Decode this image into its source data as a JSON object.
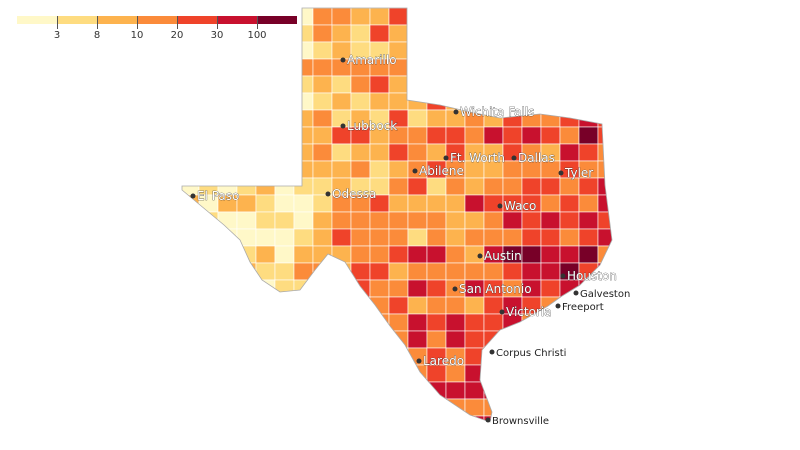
{
  "legend": {
    "colors": [
      "#fff8c8",
      "#fedc80",
      "#fdb34e",
      "#fb8b3a",
      "#ef432a",
      "#c8112e",
      "#780028"
    ],
    "ticks": [
      "3",
      "8",
      "10",
      "20",
      "30",
      "100"
    ]
  },
  "cities": [
    {
      "name": "Amarillo",
      "big": true
    },
    {
      "name": "Lubbock",
      "big": true
    },
    {
      "name": "Wichita Falls",
      "big": true
    },
    {
      "name": "Ft. Worth",
      "big": true
    },
    {
      "name": "Dallas",
      "big": true
    },
    {
      "name": "Abilene",
      "big": true
    },
    {
      "name": "Tyler",
      "big": true
    },
    {
      "name": "El Paso",
      "big": true
    },
    {
      "name": "Odessa",
      "big": true
    },
    {
      "name": "Waco",
      "big": true
    },
    {
      "name": "Austin",
      "big": true
    },
    {
      "name": "Houston",
      "big": true
    },
    {
      "name": "Galveston",
      "big": false
    },
    {
      "name": "San Antonio",
      "big": true
    },
    {
      "name": "Freeport",
      "big": false
    },
    {
      "name": "Victoria",
      "big": true
    },
    {
      "name": "Corpus Christi",
      "big": false
    },
    {
      "name": "Laredo",
      "big": true
    },
    {
      "name": "Brownsville",
      "big": false
    }
  ]
}
